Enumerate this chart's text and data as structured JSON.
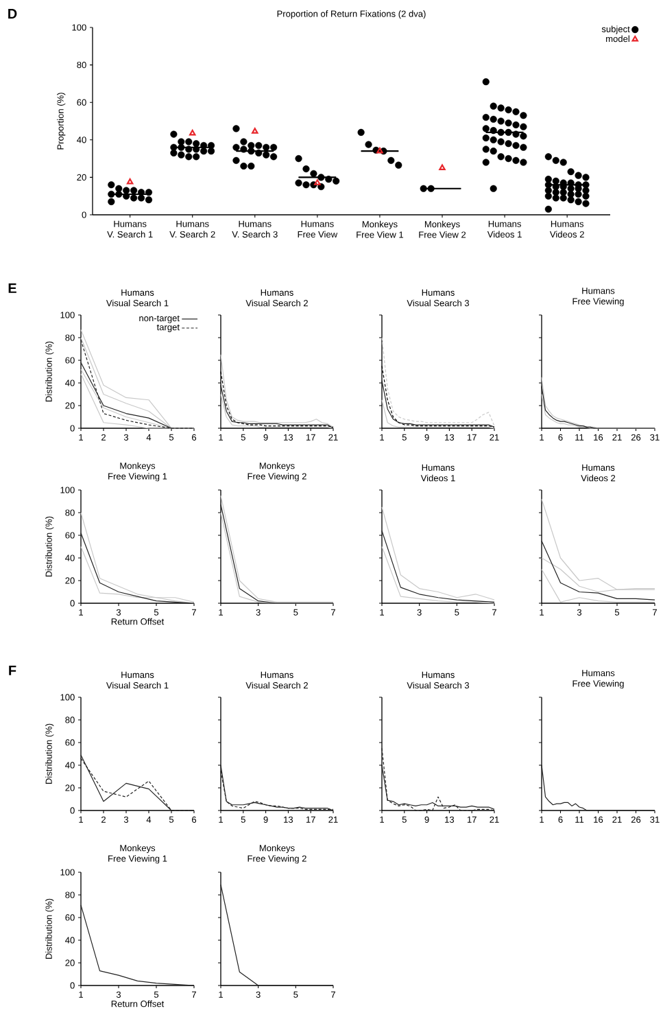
{
  "chart_data": [
    {
      "type": "scatter",
      "title": "Proportion of Return Fixations (2 dva)",
      "ylabel": "Proportion (%)",
      "annotations": [
        "D"
      ],
      "categories": [
        "Humans V. Search 1",
        "Humans V. Search 2",
        "Humans V. Search 3",
        "Humans Free View",
        "Monkeys Free View 1",
        "Monkeys Free View 2",
        "Humans Videos 1",
        "Humans Videos 2"
      ],
      "ylim": [
        0,
        100
      ],
      "yticks": [
        0,
        20,
        40,
        60,
        80,
        100
      ],
      "legend": "top right",
      "series": [
        {
          "name": "subject",
          "color": "#000000",
          "marker": "circle",
          "values": [
            16,
            43,
            46,
            30,
            44,
            14,
            71,
            31
          ]
        },
        {
          "color": "#000000",
          "marker": "circle",
          "values": [
            14,
            39,
            39,
            24.5,
            37.5,
            14,
            58,
            29
          ]
        },
        {
          "color": "#000000",
          "marker": "circle",
          "values": [
            13,
            39,
            37,
            22,
            34.5,
            null,
            57,
            28
          ]
        },
        {
          "color": "#000000",
          "marker": "circle",
          "values": [
            13,
            38,
            37,
            20,
            34,
            null,
            56,
            23
          ]
        },
        {
          "color": "#000000",
          "marker": "circle",
          "values": [
            12,
            37,
            36,
            19,
            29,
            null,
            55,
            21
          ]
        },
        {
          "color": "#000000",
          "marker": "circle",
          "values": [
            12,
            37,
            36,
            18,
            26.5,
            null,
            53,
            20
          ]
        },
        {
          "color": "#000000",
          "marker": "circle",
          "values": [
            11,
            36,
            36,
            17,
            null,
            null,
            52,
            19
          ]
        },
        {
          "color": "#000000",
          "marker": "circle",
          "values": [
            11,
            36,
            35,
            16,
            null,
            null,
            51,
            18
          ]
        },
        {
          "color": "#000000",
          "marker": "circle",
          "values": [
            10,
            35,
            34,
            16,
            null,
            null,
            50,
            17
          ]
        },
        {
          "color": "#000000",
          "marker": "circle",
          "values": [
            9,
            35,
            33,
            15,
            null,
            null,
            49,
            17
          ]
        },
        {
          "color": "#000000",
          "marker": "circle",
          "values": [
            9,
            34,
            32,
            null,
            null,
            null,
            48,
            16
          ]
        },
        {
          "color": "#000000",
          "marker": "circle",
          "values": [
            8,
            34,
            31,
            null,
            null,
            null,
            47,
            16
          ]
        },
        {
          "color": "#000000",
          "marker": "circle",
          "values": [
            7,
            33,
            29,
            null,
            null,
            null,
            46,
            16
          ]
        },
        {
          "color": "#000000",
          "marker": "circle",
          "values": [
            null,
            32,
            26,
            null,
            null,
            null,
            45,
            15
          ]
        },
        {
          "color": "#000000",
          "marker": "circle",
          "values": [
            null,
            31,
            26,
            null,
            null,
            null,
            44,
            15
          ]
        },
        {
          "color": "#000000",
          "marker": "circle",
          "values": [
            null,
            31,
            null,
            null,
            null,
            null,
            44,
            14
          ]
        },
        {
          "color": "#000000",
          "marker": "circle",
          "values": [
            null,
            null,
            null,
            null,
            null,
            null,
            43,
            14
          ]
        },
        {
          "color": "#000000",
          "marker": "circle",
          "values": [
            null,
            null,
            null,
            null,
            null,
            null,
            42,
            13
          ]
        },
        {
          "color": "#000000",
          "marker": "circle",
          "values": [
            null,
            null,
            null,
            null,
            null,
            null,
            41,
            13
          ]
        },
        {
          "color": "#000000",
          "marker": "circle",
          "values": [
            null,
            null,
            null,
            null,
            null,
            null,
            40,
            12
          ]
        },
        {
          "color": "#000000",
          "marker": "circle",
          "values": [
            null,
            null,
            null,
            null,
            null,
            null,
            39,
            12
          ]
        },
        {
          "color": "#000000",
          "marker": "circle",
          "values": [
            null,
            null,
            null,
            null,
            null,
            null,
            38,
            11
          ]
        },
        {
          "color": "#000000",
          "marker": "circle",
          "values": [
            null,
            null,
            null,
            null,
            null,
            null,
            37,
            11
          ]
        },
        {
          "color": "#000000",
          "marker": "circle",
          "values": [
            null,
            null,
            null,
            null,
            null,
            null,
            36,
            10
          ]
        },
        {
          "color": "#000000",
          "marker": "circle",
          "values": [
            null,
            null,
            null,
            null,
            null,
            null,
            35,
            10
          ]
        },
        {
          "color": "#000000",
          "marker": "circle",
          "values": [
            null,
            null,
            null,
            null,
            null,
            null,
            34,
            9
          ]
        },
        {
          "color": "#000000",
          "marker": "circle",
          "values": [
            null,
            null,
            null,
            null,
            null,
            null,
            31,
            9
          ]
        },
        {
          "color": "#000000",
          "marker": "circle",
          "values": [
            null,
            null,
            null,
            null,
            null,
            null,
            30,
            8
          ]
        },
        {
          "color": "#000000",
          "marker": "circle",
          "values": [
            null,
            null,
            null,
            null,
            null,
            null,
            29,
            7
          ]
        },
        {
          "color": "#000000",
          "marker": "circle",
          "values": [
            null,
            null,
            null,
            null,
            null,
            null,
            28,
            6
          ]
        },
        {
          "color": "#000000",
          "marker": "circle",
          "values": [
            null,
            null,
            null,
            null,
            null,
            null,
            28,
            3
          ]
        },
        {
          "color": "#000000",
          "marker": "circle",
          "values": [
            null,
            null,
            null,
            null,
            null,
            null,
            14,
            null
          ]
        },
        {
          "type": "box",
          "color": "#000000",
          "boxes": [
            {
              "low": 11,
              "q1": 11,
              "median": 11,
              "q3": 11,
              "high": 11
            },
            {
              "low": 36,
              "q1": 36,
              "median": 36,
              "q3": 36,
              "high": 36
            },
            {
              "low": 34,
              "q1": 34,
              "median": 34,
              "q3": 34,
              "high": 34
            },
            {
              "low": 20,
              "q1": 20,
              "median": 20,
              "q3": 20,
              "high": 20
            },
            {
              "low": 34,
              "q1": 34,
              "median": 34,
              "q3": 34,
              "high": 34
            },
            {
              "low": 14,
              "q1": 14,
              "median": 14,
              "q3": 14,
              "high": 14
            },
            {
              "low": 44,
              "q1": 44,
              "median": 44,
              "q3": 44,
              "high": 44
            },
            {
              "low": 16,
              "q1": 16,
              "median": 16,
              "q3": 16,
              "high": 16
            }
          ]
        },
        {
          "name": "model",
          "color": "#e8262b",
          "marker": "triangle",
          "values": [
            17.5,
            43.5,
            44.5,
            17,
            34,
            25,
            null,
            null
          ]
        }
      ]
    },
    {
      "type": "line",
      "title": "Humans Visual Search 1",
      "ylabel": "Distribution (%)",
      "annotations": [
        "E"
      ],
      "x": [
        1,
        2,
        3,
        4,
        5,
        6
      ],
      "xlim": [
        1,
        6
      ],
      "xticks": [
        1,
        2,
        3,
        4,
        5,
        6
      ],
      "ylim": [
        0,
        100
      ],
      "yticks": [
        0,
        20,
        40,
        60,
        80,
        100
      ],
      "legend": "top right",
      "series": [
        {
          "color": "#c8c8c8",
          "values": [
            87,
            38,
            27,
            25,
            0,
            0
          ]
        },
        {
          "color": "#c8c8c8",
          "values": [
            80,
            30,
            22,
            15,
            0,
            0
          ]
        },
        {
          "color": "#c8c8c8",
          "values": [
            52,
            18,
            10,
            5,
            0,
            0
          ]
        },
        {
          "color": "#c8c8c8",
          "values": [
            48,
            5,
            3,
            0,
            0,
            0
          ]
        },
        {
          "name": "non-target",
          "color": "#222222",
          "line_style": "solid",
          "values": [
            58,
            20,
            13,
            9,
            0,
            0
          ]
        },
        {
          "name": "target",
          "color": "#222222",
          "line_style": "dashed",
          "values": [
            78,
            13,
            7,
            3,
            0,
            0
          ]
        }
      ]
    },
    {
      "type": "line",
      "title": "Humans Visual Search 2",
      "x": [
        1,
        2,
        3,
        4,
        5,
        6,
        7,
        8,
        9,
        10,
        11,
        12,
        13,
        14,
        15,
        16,
        17,
        18,
        19,
        20,
        21
      ],
      "xlim": [
        1,
        21
      ],
      "xticks": [
        1,
        5,
        9,
        13,
        17,
        21
      ],
      "ylim": [
        0,
        100
      ],
      "yticks": [
        0,
        20,
        40,
        60,
        80,
        100
      ],
      "tick_labels": "x",
      "series": [
        {
          "color": "#c8c8c8",
          "values": [
            65,
            25,
            10,
            7,
            6,
            6,
            6,
            5,
            5,
            5,
            5,
            5,
            5,
            5,
            5,
            5,
            6,
            8,
            5,
            4,
            1
          ]
        },
        {
          "color": "#c8c8c8",
          "values": [
            30,
            10,
            3,
            2,
            2,
            2,
            2,
            1,
            1,
            1,
            1,
            1,
            1,
            1,
            1,
            1,
            1,
            1,
            1,
            1,
            0
          ]
        },
        {
          "color": "#222222",
          "line_style": "solid",
          "values": [
            38,
            15,
            6,
            5,
            5,
            4,
            4,
            4,
            4,
            4,
            4,
            3,
            3,
            3,
            3,
            3,
            3,
            3,
            3,
            3,
            0
          ]
        },
        {
          "color": "#000000",
          "line_style": "dashed",
          "values": [
            50,
            20,
            8,
            5,
            4,
            3,
            3,
            3,
            2,
            2,
            2,
            2,
            2,
            2,
            2,
            2,
            2,
            2,
            2,
            2,
            1
          ]
        }
      ]
    },
    {
      "type": "line",
      "title": "Humans Visual Search 3",
      "x": [
        1,
        2,
        3,
        4,
        5,
        6,
        7,
        8,
        9,
        10,
        11,
        12,
        13,
        14,
        15,
        16,
        17,
        18,
        19,
        20,
        21
      ],
      "xlim": [
        1,
        21
      ],
      "xticks": [
        1,
        5,
        9,
        13,
        17,
        21
      ],
      "ylim": [
        0,
        100
      ],
      "yticks": [
        0,
        20,
        40,
        60,
        80,
        100
      ],
      "tick_labels": "x",
      "series": [
        {
          "color": "#c8c8c8",
          "line_style": "dashed",
          "values": [
            80,
            35,
            15,
            10,
            8,
            7,
            6,
            6,
            5,
            5,
            5,
            5,
            5,
            5,
            5,
            5,
            5,
            8,
            12,
            14,
            2
          ]
        },
        {
          "color": "#c8c8c8",
          "line_style": "solid",
          "values": [
            25,
            5,
            2,
            1,
            1,
            1,
            1,
            1,
            1,
            1,
            1,
            1,
            1,
            1,
            1,
            1,
            1,
            1,
            1,
            1,
            0
          ]
        },
        {
          "color": "#222222",
          "line_style": "solid",
          "values": [
            42,
            17,
            8,
            5,
            4,
            4,
            3,
            3,
            3,
            3,
            3,
            3,
            3,
            3,
            3,
            3,
            3,
            3,
            3,
            3,
            1
          ]
        },
        {
          "color": "#000000",
          "line_style": "dashed",
          "values": [
            55,
            25,
            10,
            5,
            3,
            3,
            2,
            2,
            2,
            2,
            2,
            2,
            2,
            2,
            2,
            2,
            2,
            2,
            2,
            2,
            1
          ]
        }
      ]
    },
    {
      "type": "line",
      "title": "Humans Free Viewing",
      "x": [
        1,
        2,
        3,
        4,
        5,
        6,
        7,
        8,
        9,
        10,
        11,
        12,
        13,
        14,
        15,
        16,
        17,
        18,
        19,
        20,
        21,
        22,
        23,
        24,
        25,
        26,
        27,
        28,
        29,
        30,
        31
      ],
      "xlim": [
        1,
        31
      ],
      "xticks": [
        1,
        6,
        11,
        16,
        21,
        26,
        31
      ],
      "ylim": [
        0,
        100
      ],
      "yticks": [
        0,
        20,
        40,
        60,
        80,
        100
      ],
      "tick_labels": "x",
      "series": [
        {
          "color": "#c8c8c8",
          "values": [
            45,
            20,
            15,
            11,
            9,
            8,
            7,
            6,
            5,
            4,
            3,
            2,
            1,
            1,
            1,
            0,
            0,
            0,
            0,
            0,
            0,
            0,
            0,
            0,
            0,
            0,
            0,
            0,
            0,
            0,
            0
          ]
        },
        {
          "color": "#c8c8c8",
          "values": [
            30,
            12,
            9,
            7,
            5,
            4,
            4,
            3,
            3,
            2,
            1,
            1,
            1,
            0,
            0,
            0,
            0,
            0,
            0,
            0,
            0,
            0,
            0,
            0,
            0,
            0,
            0,
            0,
            0,
            0,
            0
          ]
        },
        {
          "color": "#222222",
          "values": [
            37,
            16,
            12,
            9,
            7,
            6,
            6,
            5,
            4,
            3,
            2,
            2,
            1,
            1,
            0,
            0,
            0,
            0,
            0,
            0,
            0,
            0,
            0,
            0,
            0,
            0,
            0,
            0,
            0,
            0,
            0
          ]
        }
      ]
    },
    {
      "type": "line",
      "title": "Monkeys Free Viewing 1",
      "ylabel": "Distribution (%)",
      "xlabel": "Return Offset",
      "x": [
        1,
        2,
        3,
        4,
        5,
        6,
        7
      ],
      "xlim": [
        1,
        7
      ],
      "xticks": [
        1,
        3,
        5,
        7
      ],
      "ylim": [
        0,
        100
      ],
      "yticks": [
        0,
        20,
        40,
        60,
        80,
        100
      ],
      "series": [
        {
          "color": "#c8c8c8",
          "values": [
            80,
            22,
            15,
            8,
            5,
            5,
            1
          ]
        },
        {
          "color": "#c8c8c8",
          "values": [
            50,
            9,
            8,
            5,
            5,
            2,
            0
          ]
        },
        {
          "color": "#222222",
          "values": [
            62,
            18,
            10,
            6,
            2,
            1,
            0
          ]
        }
      ]
    },
    {
      "type": "line",
      "title": "Monkeys Free Viewing 2",
      "x": [
        1,
        2,
        3,
        4,
        5,
        6,
        7
      ],
      "xlim": [
        1,
        7
      ],
      "xticks": [
        1,
        3,
        5,
        7
      ],
      "ylim": [
        0,
        100
      ],
      "yticks": [
        0,
        20,
        40,
        60,
        80,
        100
      ],
      "tick_labels": "x",
      "series": [
        {
          "color": "#c8c8c8",
          "values": [
            95,
            20,
            4,
            1,
            1,
            1,
            1
          ]
        },
        {
          "color": "#c8c8c8",
          "values": [
            80,
            6,
            1,
            0,
            0,
            0,
            0
          ]
        },
        {
          "color": "#222222",
          "values": [
            87,
            13,
            2,
            0,
            0,
            0,
            0
          ]
        }
      ]
    },
    {
      "type": "line",
      "title": "Humans Videos 1",
      "x": [
        1,
        2,
        3,
        4,
        5,
        6,
        7
      ],
      "xlim": [
        1,
        7
      ],
      "xticks": [
        1,
        3,
        5,
        7
      ],
      "ylim": [
        0,
        100
      ],
      "yticks": [
        0,
        20,
        40,
        60,
        80,
        100
      ],
      "tick_labels": "x",
      "series": [
        {
          "color": "#c8c8c8",
          "values": [
            85,
            25,
            13,
            10,
            5,
            8,
            3
          ]
        },
        {
          "color": "#c8c8c8",
          "values": [
            50,
            6,
            4,
            2,
            1,
            1,
            0
          ]
        },
        {
          "color": "#222222",
          "values": [
            64,
            14,
            8,
            5,
            3,
            2,
            1
          ]
        }
      ]
    },
    {
      "type": "line",
      "title": "Humans Videos 2",
      "x": [
        1,
        2,
        3,
        4,
        5,
        6,
        7
      ],
      "xlim": [
        1,
        7
      ],
      "xticks": [
        1,
        3,
        5,
        7
      ],
      "ylim": [
        0,
        100
      ],
      "yticks": [
        0,
        20,
        40,
        60,
        80,
        100
      ],
      "tick_labels": "x",
      "series": [
        {
          "color": "#c8c8c8",
          "values": [
            92,
            40,
            20,
            22,
            12,
            13,
            13
          ]
        },
        {
          "color": "#c8c8c8",
          "values": [
            40,
            30,
            15,
            10,
            12,
            12,
            12
          ]
        },
        {
          "color": "#c8c8c8",
          "values": [
            30,
            1,
            5,
            2,
            1,
            1,
            1
          ]
        },
        {
          "color": "#222222",
          "values": [
            55,
            18,
            10,
            9,
            4,
            4,
            3
          ]
        }
      ]
    },
    {
      "type": "line",
      "title": "Humans Visual Search 1",
      "ylabel": "Distribution (%)",
      "annotations": [
        "F"
      ],
      "x": [
        1,
        2,
        3,
        4,
        5,
        6
      ],
      "xlim": [
        1,
        6
      ],
      "xticks": [
        1,
        2,
        3,
        4,
        5,
        6
      ],
      "ylim": [
        0,
        100
      ],
      "yticks": [
        0,
        20,
        40,
        60,
        80,
        100
      ],
      "series": [
        {
          "color": "#222222",
          "line_style": "solid",
          "values": [
            49,
            8,
            24,
            19,
            0,
            0
          ]
        },
        {
          "color": "#222222",
          "line_style": "dashed",
          "values": [
            46,
            17,
            12,
            26,
            0,
            0
          ]
        }
      ]
    },
    {
      "type": "line",
      "title": "Humans Visual Search 2",
      "x": [
        1,
        2,
        3,
        4,
        5,
        6,
        7,
        8,
        9,
        10,
        11,
        12,
        13,
        14,
        15,
        16,
        17,
        18,
        19,
        20,
        21
      ],
      "xlim": [
        1,
        21
      ],
      "xticks": [
        1,
        5,
        9,
        13,
        17,
        21
      ],
      "ylim": [
        0,
        100
      ],
      "yticks": [
        0,
        20,
        40,
        60,
        80,
        100
      ],
      "tick_labels": "x",
      "series": [
        {
          "color": "#222222",
          "line_style": "solid",
          "values": [
            40,
            8,
            5,
            5,
            5,
            6,
            7,
            6,
            5,
            4,
            3,
            3,
            2,
            2,
            3,
            2,
            2,
            2,
            2,
            2,
            0
          ]
        },
        {
          "color": "#222222",
          "line_style": "dashed",
          "values": [
            35,
            8,
            4,
            3,
            2,
            5,
            8,
            7,
            5,
            4,
            4,
            3,
            2,
            2,
            2,
            1,
            1,
            1,
            1,
            1,
            1
          ]
        }
      ]
    },
    {
      "type": "line",
      "title": "Humans Visual Search 3",
      "x": [
        1,
        2,
        3,
        4,
        5,
        6,
        7,
        8,
        9,
        10,
        11,
        12,
        13,
        14,
        15,
        16,
        17,
        18,
        19,
        20,
        21
      ],
      "xlim": [
        1,
        21
      ],
      "xticks": [
        1,
        5,
        9,
        13,
        17,
        21
      ],
      "ylim": [
        0,
        100
      ],
      "yticks": [
        0,
        20,
        40,
        60,
        80,
        100
      ],
      "tick_labels": "x",
      "series": [
        {
          "color": "#222222",
          "line_style": "solid",
          "values": [
            40,
            9,
            8,
            5,
            6,
            5,
            4,
            5,
            5,
            7,
            4,
            4,
            4,
            4,
            3,
            3,
            4,
            3,
            3,
            3,
            1
          ]
        },
        {
          "color": "#222222",
          "line_style": "dashed",
          "values": [
            55,
            9,
            6,
            4,
            5,
            4,
            0,
            0,
            1,
            0,
            12,
            2,
            3,
            5,
            0,
            0,
            0,
            1,
            1,
            1,
            0
          ]
        }
      ]
    },
    {
      "type": "line",
      "title": "Humans Free Viewing",
      "x": [
        1,
        2,
        3,
        4,
        5,
        6,
        7,
        8,
        9,
        10,
        11,
        12,
        13,
        14,
        15,
        16,
        17,
        18,
        19,
        20,
        21,
        22,
        23,
        24,
        25,
        26,
        27,
        28,
        29,
        30,
        31
      ],
      "xlim": [
        1,
        31
      ],
      "xticks": [
        1,
        6,
        11,
        16,
        21,
        26,
        31
      ],
      "ylim": [
        0,
        100
      ],
      "yticks": [
        0,
        20,
        40,
        60,
        80,
        100
      ],
      "tick_labels": "x",
      "series": [
        {
          "color": "#222222",
          "values": [
            40,
            12,
            8,
            5,
            6,
            6,
            7,
            7,
            4,
            6,
            3,
            2,
            0,
            0,
            0,
            0,
            0,
            0,
            0,
            0,
            0,
            0,
            0,
            0,
            0,
            0,
            0,
            0,
            0,
            0,
            0
          ]
        }
      ]
    },
    {
      "type": "line",
      "title": "Monkeys Free Viewing 1",
      "ylabel": "Distribution (%)",
      "xlabel": "Return Offset",
      "x": [
        1,
        2,
        3,
        4,
        5,
        6,
        7
      ],
      "xlim": [
        1,
        7
      ],
      "xticks": [
        1,
        3,
        5,
        7
      ],
      "ylim": [
        0,
        100
      ],
      "yticks": [
        0,
        20,
        40,
        60,
        80,
        100
      ],
      "series": [
        {
          "color": "#222222",
          "values": [
            71,
            13,
            9,
            4,
            2,
            1,
            0
          ]
        }
      ]
    },
    {
      "type": "line",
      "title": "Monkeys Free Viewing 2",
      "x": [
        1,
        2,
        3,
        4,
        5,
        6,
        7
      ],
      "xlim": [
        1,
        7
      ],
      "xticks": [
        1,
        3,
        5,
        7
      ],
      "ylim": [
        0,
        100
      ],
      "yticks": [
        0,
        20,
        40,
        60,
        80,
        100
      ],
      "tick_labels": "x",
      "series": [
        {
          "color": "#222222",
          "values": [
            89,
            12,
            0,
            0,
            0,
            0,
            0
          ]
        }
      ]
    }
  ]
}
